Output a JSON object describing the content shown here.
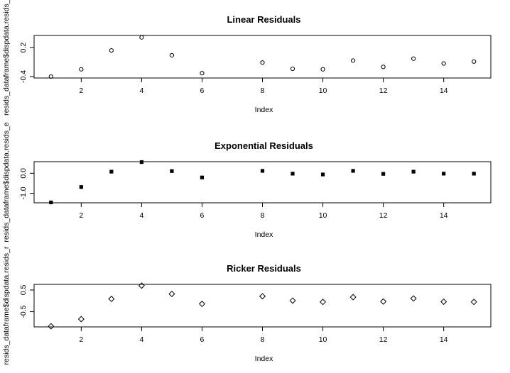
{
  "chart_data": [
    {
      "type": "scatter",
      "title": "Linear Residuals",
      "xlabel": "Index",
      "ylabel": "resids_dataframe$dispdata.resids_l",
      "marker": "circle-open",
      "x": [
        1,
        2,
        3,
        4,
        5,
        6,
        7,
        8,
        9,
        10,
        11,
        12,
        13,
        14,
        15
      ],
      "y": [
        -0.4,
        -0.25,
        0.14,
        0.41,
        0.04,
        -0.33,
        null,
        -0.11,
        -0.24,
        -0.25,
        -0.07,
        -0.2,
        -0.03,
        -0.13,
        -0.09
      ],
      "xticks": [
        2,
        4,
        6,
        8,
        10,
        12,
        14
      ],
      "xtick_labels": [
        "2",
        "4",
        "6",
        "8",
        "10",
        "12",
        "14"
      ],
      "yticks": [
        -0.4,
        0.2
      ],
      "ytick_labels": [
        "-0.4",
        "0.2"
      ],
      "xlim": [
        0.44,
        15.56
      ],
      "ylim": [
        -0.43,
        0.45
      ]
    },
    {
      "type": "scatter",
      "title": "Exponential Residuals",
      "xlabel": "Index",
      "ylabel": "resids_dataframe$dispdata.resids_e",
      "marker": "square-filled",
      "x": [
        1,
        2,
        3,
        4,
        5,
        6,
        7,
        8,
        9,
        10,
        11,
        12,
        13,
        14,
        15
      ],
      "y": [
        -1.46,
        -0.69,
        0.08,
        0.56,
        0.11,
        -0.21,
        null,
        0.12,
        -0.02,
        -0.06,
        0.12,
        -0.03,
        0.08,
        -0.02,
        -0.02
      ],
      "xticks": [
        2,
        4,
        6,
        8,
        10,
        12,
        14
      ],
      "xtick_labels": [
        "2",
        "4",
        "6",
        "8",
        "10",
        "12",
        "14"
      ],
      "yticks": [
        0.0,
        -1.0
      ],
      "ytick_labels": [
        "0.0",
        "-1.0"
      ],
      "xlim": [
        0.44,
        15.56
      ],
      "ylim": [
        -1.48,
        0.58
      ]
    },
    {
      "type": "scatter",
      "title": "Ricker Residuals",
      "xlabel": "Index",
      "ylabel": "resids_dataframe$dispdata.resids_r",
      "marker": "diamond-open",
      "x": [
        1,
        2,
        3,
        4,
        5,
        6,
        7,
        8,
        9,
        10,
        11,
        12,
        13,
        14,
        15
      ],
      "y": [
        -1.17,
        -0.84,
        0.09,
        0.7,
        0.32,
        -0.14,
        null,
        0.21,
        0.01,
        -0.05,
        0.17,
        -0.03,
        0.11,
        -0.04,
        -0.05
      ],
      "xticks": [
        2,
        4,
        6,
        8,
        10,
        12,
        14
      ],
      "xtick_labels": [
        "2",
        "4",
        "6",
        "8",
        "10",
        "12",
        "14"
      ],
      "yticks": [
        0.5,
        -0.5
      ],
      "ytick_labels": [
        "0.5",
        "-0.5"
      ],
      "xlim": [
        0.44,
        15.56
      ],
      "ylim": [
        -1.2,
        0.76
      ]
    }
  ]
}
